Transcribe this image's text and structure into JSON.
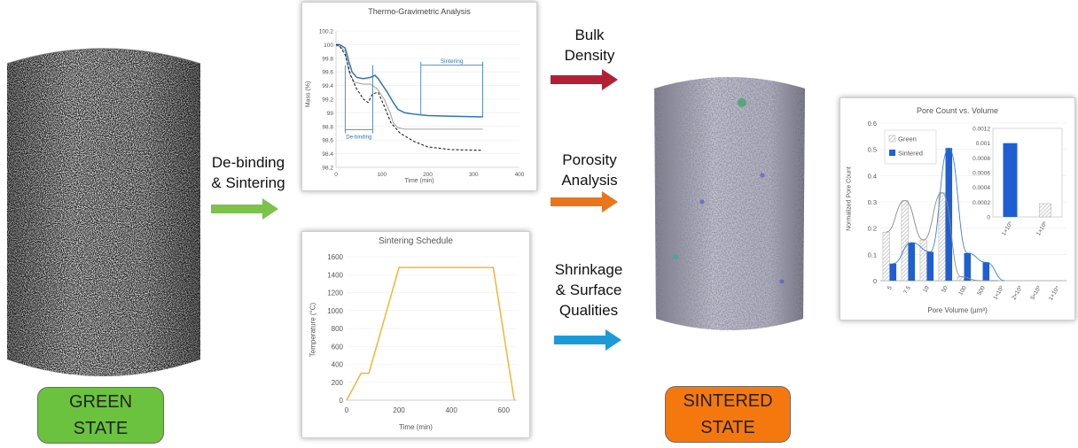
{
  "green_state": {
    "line1": "GREEN",
    "line2": "STATE",
    "color": "#6bc23e"
  },
  "sintered_state": {
    "line1": "SINTERED",
    "line2": "STATE",
    "color": "#f5780f"
  },
  "process_label": {
    "line1": "De-binding",
    "line2": "& Sintering",
    "arrow_color": "#7dc24b"
  },
  "analyses": [
    {
      "line1": "Bulk",
      "line2": "Density",
      "arrow_color": "#b32036"
    },
    {
      "line1": "Porosity",
      "line2": "Analysis",
      "arrow_color": "#e8761c"
    },
    {
      "line1": "Shrinkage",
      "line2": "& Surface",
      "line3": "Qualities",
      "arrow_color": "#1c9bd8"
    }
  ],
  "chart_data": [
    {
      "type": "line",
      "title": "Thermo-Gravimetric Analysis",
      "xlabel": "Time (min)",
      "ylabel": "Mass (%)",
      "xlim": [
        0,
        400
      ],
      "ylim": [
        98.2,
        100.2
      ],
      "xticks": [
        "0",
        "100",
        "200",
        "300",
        "400"
      ],
      "yticks": [
        "98.2",
        "98.4",
        "98.6",
        "98.8",
        "99",
        "99.2",
        "99.4",
        "99.6",
        "99.8",
        "100",
        "100.2"
      ],
      "annotations": {
        "debinding": "De-binding",
        "sintering": "Sintering"
      },
      "debinding_range": [
        20,
        80
      ],
      "sintering_range": [
        185,
        320
      ],
      "annotation_level": 99.7,
      "series": [
        {
          "color": "#2e75b6",
          "style": "solid",
          "x": [
            0,
            8,
            20,
            28,
            35,
            45,
            60,
            75,
            85,
            92,
            100,
            112,
            125,
            135,
            150,
            170,
            200,
            250,
            320
          ],
          "y": [
            100.0,
            100.0,
            99.95,
            99.75,
            99.6,
            99.52,
            99.5,
            99.52,
            99.55,
            99.5,
            99.42,
            99.3,
            99.15,
            99.05,
            99.0,
            98.98,
            98.96,
            98.95,
            98.94
          ]
        },
        {
          "color": "#a6a6a6",
          "style": "solid",
          "x": [
            0,
            8,
            20,
            28,
            40,
            60,
            75,
            90,
            105,
            118,
            125,
            135,
            150,
            180,
            250,
            320
          ],
          "y": [
            99.98,
            99.98,
            99.9,
            99.6,
            99.45,
            99.42,
            99.42,
            99.35,
            99.2,
            99.0,
            98.85,
            98.78,
            98.76,
            98.76,
            98.76,
            98.76
          ]
        },
        {
          "color": "#222222",
          "style": "dashed",
          "x": [
            0,
            8,
            20,
            32,
            45,
            60,
            70,
            80,
            92,
            105,
            120,
            140,
            170,
            200,
            250,
            320
          ],
          "y": [
            100.0,
            99.98,
            99.85,
            99.55,
            99.35,
            99.2,
            99.15,
            99.28,
            99.3,
            99.1,
            98.85,
            98.7,
            98.58,
            98.5,
            98.46,
            98.45
          ]
        }
      ]
    },
    {
      "type": "line",
      "title": "Sintering Schedule",
      "xlabel": "Time (min)",
      "ylabel": "Temperature (°C)",
      "xlim": [
        0,
        650
      ],
      "ylim": [
        0,
        1600
      ],
      "xticks": [
        "0",
        "200",
        "400",
        "600"
      ],
      "yticks": [
        "0",
        "200",
        "400",
        "600",
        "800",
        "1000",
        "1200",
        "1400",
        "1600"
      ],
      "series": [
        {
          "color": "#f2b632",
          "x": [
            0,
            55,
            85,
            200,
            560,
            640
          ],
          "y": [
            0,
            300,
            300,
            1480,
            1480,
            0
          ]
        }
      ]
    },
    {
      "type": "bar",
      "title": "Pore Count vs. Volume",
      "xlabel": "Pore Volume (µm³)",
      "ylabel": "Normalized Pore Count",
      "ylim": [
        0,
        0.6
      ],
      "yticks": [
        "0",
        "0.1",
        "0.2",
        "0.3",
        "0.4",
        "0.5",
        "0.6"
      ],
      "categories": [
        "5",
        "7.5",
        "10",
        "50",
        "100",
        "500",
        "1×10³",
        "2×10³",
        "5×10³",
        "1×10⁴"
      ],
      "legend_position": "top-left",
      "series": [
        {
          "name": "Green",
          "color": "#bfbfbf",
          "values": [
            0.185,
            0.305,
            0.155,
            0.335,
            0.015,
            0.0,
            0.0,
            0.0,
            0.0,
            0.0
          ]
        },
        {
          "name": "Sintered",
          "color": "#1f5fd1",
          "values": [
            0.065,
            0.145,
            0.11,
            0.505,
            0.105,
            0.07,
            0.0,
            0.0,
            0.0,
            0.0
          ]
        }
      ],
      "inset": {
        "ylim": [
          0,
          0.0012
        ],
        "yticks": [
          "0",
          "0.0002",
          "0.0004",
          "0.0006",
          "0.0008",
          "0.001",
          "0.0012"
        ],
        "categories": [
          "1×10⁵",
          "1×10⁶"
        ],
        "sintered": [
          0.001,
          0.0
        ],
        "green": [
          0.0,
          0.00018
        ]
      }
    }
  ]
}
